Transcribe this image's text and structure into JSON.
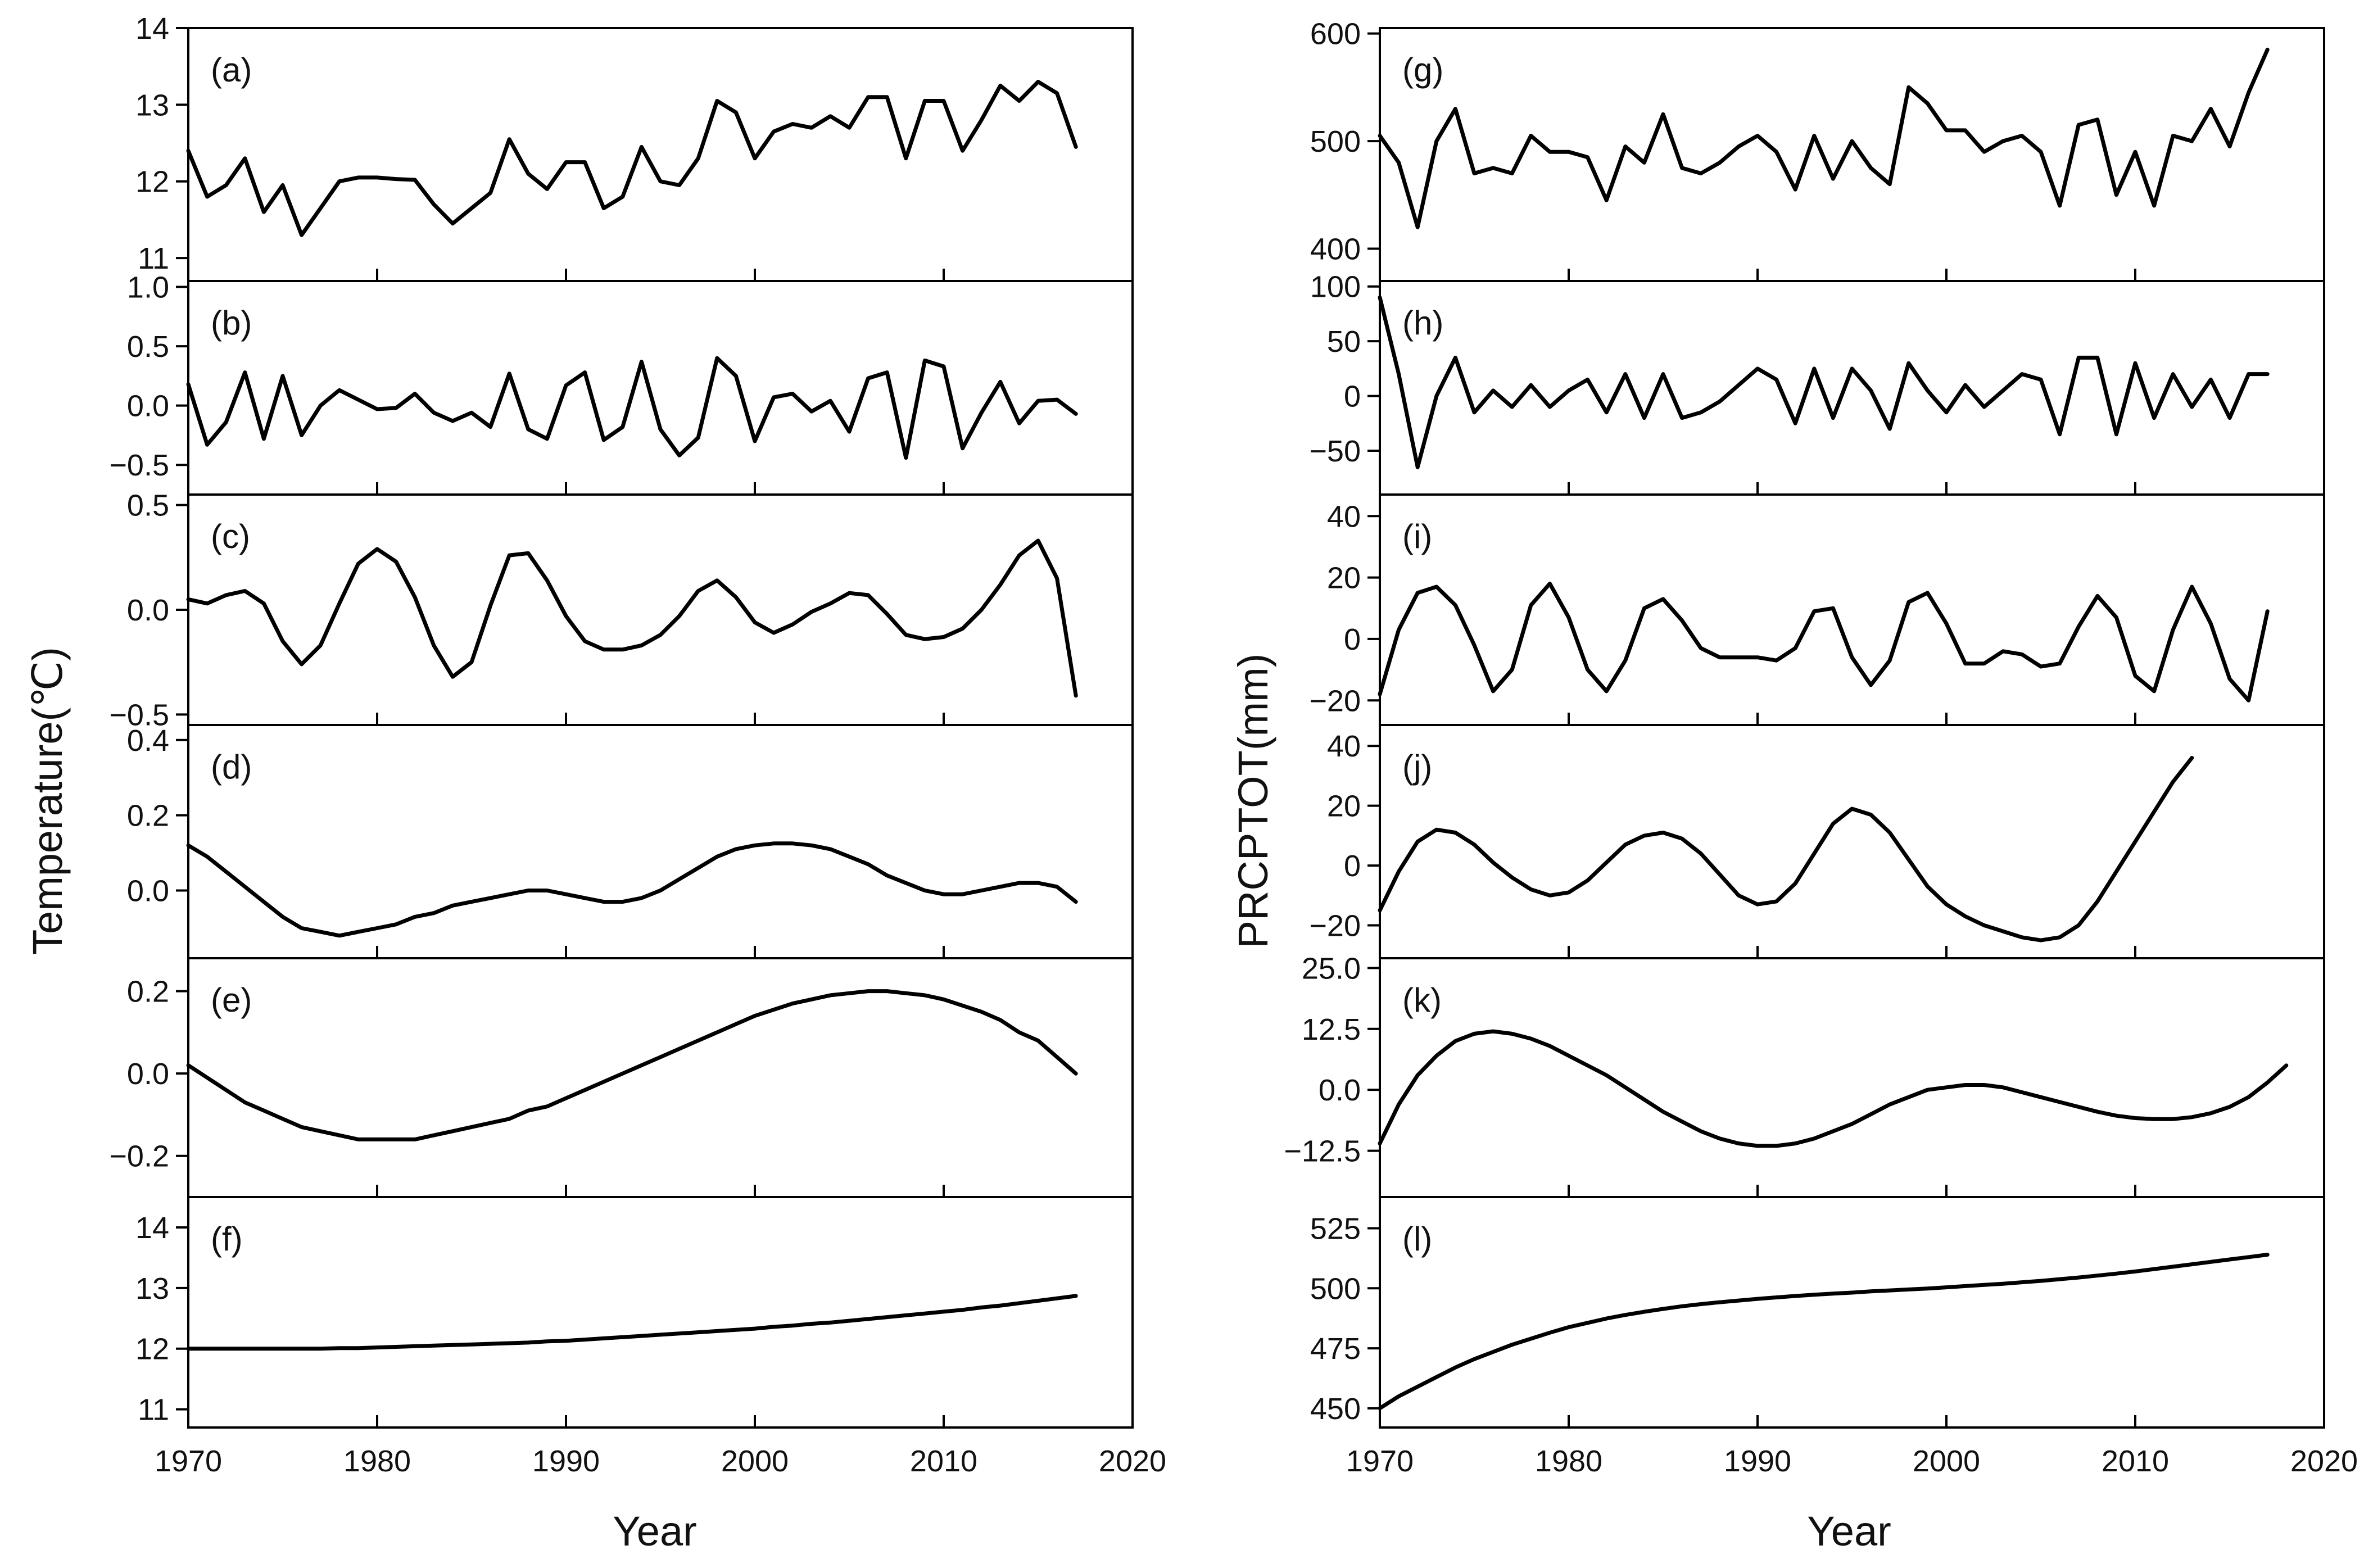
{
  "chart_data": [
    {
      "type": "line",
      "id": "a",
      "tag": "(a)",
      "column": "left",
      "xlim": [
        1970,
        2020
      ],
      "ylim": [
        10.7,
        14
      ],
      "yticks": [
        11,
        12,
        13,
        14
      ],
      "ytick_labels": [
        "11",
        "12",
        "13",
        "14"
      ],
      "series": [
        {
          "name": "a",
          "x_start": 1970,
          "x_step": 1,
          "values": [
            12.4,
            11.8,
            11.95,
            12.3,
            11.6,
            11.95,
            11.3,
            11.65,
            12.0,
            12.05,
            12.05,
            12.03,
            12.02,
            11.7,
            11.45,
            11.65,
            11.85,
            12.55,
            12.1,
            11.9,
            12.25,
            12.25,
            11.65,
            11.8,
            12.45,
            12.0,
            11.95,
            12.3,
            13.05,
            12.9,
            12.3,
            12.65,
            12.75,
            12.7,
            12.85,
            12.7,
            13.1,
            13.1,
            12.3,
            13.05,
            13.05,
            12.4,
            12.8,
            13.25,
            13.05,
            13.3,
            13.15,
            12.45
          ]
        }
      ]
    },
    {
      "type": "line",
      "id": "b",
      "tag": "(b)",
      "column": "left",
      "xlim": [
        1970,
        2020
      ],
      "ylim": [
        -0.75,
        1.05
      ],
      "yticks": [
        -0.5,
        0,
        0.5,
        1.0
      ],
      "ytick_labels": [
        "−0.5",
        "0.0",
        "0.5",
        "1.0"
      ],
      "series": [
        {
          "name": "b",
          "x_start": 1970,
          "x_step": 1,
          "values": [
            0.18,
            -0.33,
            -0.14,
            0.28,
            -0.28,
            0.25,
            -0.25,
            0.0,
            0.13,
            0.05,
            -0.03,
            -0.02,
            0.1,
            -0.06,
            -0.13,
            -0.06,
            -0.18,
            0.27,
            -0.2,
            -0.28,
            0.17,
            0.28,
            -0.29,
            -0.18,
            0.37,
            -0.2,
            -0.42,
            -0.27,
            0.4,
            0.25,
            -0.3,
            0.07,
            0.1,
            -0.05,
            0.04,
            -0.22,
            0.23,
            0.28,
            -0.44,
            0.38,
            0.33,
            -0.36,
            -0.06,
            0.2,
            -0.15,
            0.04,
            0.05,
            -0.07
          ]
        }
      ]
    },
    {
      "type": "line",
      "id": "c",
      "tag": "(c)",
      "column": "left",
      "xlim": [
        1970,
        2020
      ],
      "ylim": [
        -0.55,
        0.55
      ],
      "yticks": [
        -0.5,
        0,
        0.5
      ],
      "ytick_labels": [
        "−0.5",
        "0.0",
        "0.5"
      ],
      "series": [
        {
          "name": "c",
          "x_start": 1970,
          "x_step": 1,
          "values": [
            0.05,
            0.03,
            0.07,
            0.09,
            0.03,
            -0.15,
            -0.26,
            -0.17,
            0.03,
            0.22,
            0.29,
            0.23,
            0.06,
            -0.17,
            -0.32,
            -0.25,
            0.02,
            0.26,
            0.27,
            0.14,
            -0.03,
            -0.15,
            -0.19,
            -0.19,
            -0.17,
            -0.12,
            -0.03,
            0.09,
            0.14,
            0.06,
            -0.06,
            -0.11,
            -0.07,
            -0.01,
            0.03,
            0.08,
            0.07,
            -0.02,
            -0.12,
            -0.14,
            -0.13,
            -0.09,
            0.0,
            0.12,
            0.26,
            0.33,
            0.15,
            -0.41
          ]
        }
      ]
    },
    {
      "type": "line",
      "id": "d",
      "tag": "(d)",
      "column": "left",
      "xlim": [
        1970,
        2020
      ],
      "ylim": [
        -0.18,
        0.44
      ],
      "yticks": [
        0,
        0.2,
        0.4
      ],
      "ytick_labels": [
        "0.0",
        "0.2",
        "0.4"
      ],
      "series": [
        {
          "name": "d",
          "x_start": 1970,
          "x_step": 1,
          "values": [
            0.12,
            0.09,
            0.05,
            0.01,
            -0.03,
            -0.07,
            -0.1,
            -0.11,
            -0.12,
            -0.11,
            -0.1,
            -0.09,
            -0.07,
            -0.06,
            -0.04,
            -0.03,
            -0.02,
            -0.01,
            0.0,
            0.0,
            -0.01,
            -0.02,
            -0.03,
            -0.03,
            -0.02,
            0.0,
            0.03,
            0.06,
            0.09,
            0.11,
            0.12,
            0.125,
            0.125,
            0.12,
            0.11,
            0.09,
            0.07,
            0.04,
            0.02,
            0.0,
            -0.01,
            -0.01,
            0.0,
            0.01,
            0.02,
            0.02,
            0.01,
            -0.03
          ]
        }
      ]
    },
    {
      "type": "line",
      "id": "e",
      "tag": "(e)",
      "column": "left",
      "xlim": [
        1970,
        2020
      ],
      "ylim": [
        -0.3,
        0.28
      ],
      "yticks": [
        -0.2,
        0,
        0.2
      ],
      "ytick_labels": [
        "−0.2",
        "0.0",
        "0.2"
      ],
      "series": [
        {
          "name": "e",
          "x_start": 1970,
          "x_step": 1,
          "values": [
            0.02,
            -0.01,
            -0.04,
            -0.07,
            -0.09,
            -0.11,
            -0.13,
            -0.14,
            -0.15,
            -0.16,
            -0.16,
            -0.16,
            -0.16,
            -0.15,
            -0.14,
            -0.13,
            -0.12,
            -0.11,
            -0.09,
            -0.08,
            -0.06,
            -0.04,
            -0.02,
            0.0,
            0.02,
            0.04,
            0.06,
            0.08,
            0.1,
            0.12,
            0.14,
            0.155,
            0.17,
            0.18,
            0.19,
            0.195,
            0.2,
            0.2,
            0.195,
            0.19,
            0.18,
            0.165,
            0.15,
            0.13,
            0.1,
            0.08,
            0.04,
            0.0
          ]
        }
      ]
    },
    {
      "type": "line",
      "id": "f",
      "tag": "(f)",
      "column": "left",
      "xlim": [
        1970,
        2020
      ],
      "ylim": [
        10.7,
        14.5
      ],
      "yticks": [
        11,
        12,
        13,
        14
      ],
      "ytick_labels": [
        "11",
        "12",
        "13",
        "14"
      ],
      "series": [
        {
          "name": "f",
          "x_start": 1970,
          "x_step": 1,
          "values": [
            12.0,
            12.0,
            12.0,
            12.0,
            12.0,
            12.0,
            12.0,
            12.0,
            12.01,
            12.01,
            12.02,
            12.03,
            12.04,
            12.05,
            12.06,
            12.07,
            12.08,
            12.09,
            12.1,
            12.12,
            12.13,
            12.15,
            12.17,
            12.19,
            12.21,
            12.23,
            12.25,
            12.27,
            12.29,
            12.31,
            12.33,
            12.36,
            12.38,
            12.41,
            12.43,
            12.46,
            12.49,
            12.52,
            12.55,
            12.58,
            12.61,
            12.64,
            12.68,
            12.71,
            12.75,
            12.79,
            12.83,
            12.87
          ]
        }
      ]
    },
    {
      "type": "line",
      "id": "g",
      "tag": "(g)",
      "column": "right",
      "xlim": [
        1970,
        2020
      ],
      "ylim": [
        370,
        605
      ],
      "yticks": [
        400,
        500,
        600
      ],
      "ytick_labels": [
        "400",
        "500",
        "600"
      ],
      "series": [
        {
          "name": "g",
          "x_start": 1970,
          "x_step": 1,
          "values": [
            505,
            480,
            420,
            500,
            530,
            470,
            475,
            470,
            505,
            490,
            490,
            485,
            445,
            495,
            480,
            525,
            475,
            470,
            480,
            495,
            505,
            490,
            455,
            505,
            465,
            500,
            475,
            460,
            550,
            535,
            510,
            510,
            490,
            500,
            505,
            490,
            440,
            515,
            520,
            450,
            490,
            440,
            505,
            500,
            530,
            495,
            545,
            585
          ]
        }
      ]
    },
    {
      "type": "line",
      "id": "h",
      "tag": "(h)",
      "column": "right",
      "xlim": [
        1970,
        2020
      ],
      "ylim": [
        -90,
        105
      ],
      "yticks": [
        -50,
        0,
        50,
        100
      ],
      "ytick_labels": [
        "−50",
        "0",
        "50",
        "100"
      ],
      "series": [
        {
          "name": "h",
          "x_start": 1970,
          "x_step": 1,
          "values": [
            90,
            20,
            -65,
            0,
            35,
            -15,
            5,
            -10,
            10,
            -10,
            5,
            15,
            -15,
            20,
            -20,
            20,
            -20,
            -15,
            -5,
            10,
            25,
            15,
            -25,
            25,
            -20,
            25,
            5,
            -30,
            30,
            5,
            -15,
            10,
            -10,
            5,
            20,
            15,
            -35,
            35,
            35,
            -35,
            30,
            -20,
            20,
            -10,
            15,
            -20,
            20,
            20
          ]
        }
      ]
    },
    {
      "type": "line",
      "id": "i",
      "tag": "(i)",
      "column": "right",
      "xlim": [
        1970,
        2020
      ],
      "ylim": [
        -28,
        47
      ],
      "yticks": [
        -20,
        0,
        20,
        40
      ],
      "ytick_labels": [
        "−20",
        "0",
        "20",
        "40"
      ],
      "series": [
        {
          "name": "i",
          "x_start": 1970,
          "x_step": 1,
          "values": [
            -18,
            3,
            15,
            17,
            11,
            -2,
            -17,
            -10,
            11,
            18,
            7,
            -10,
            -17,
            -7,
            10,
            13,
            6,
            -3,
            -6,
            -6,
            -6,
            -7,
            -3,
            9,
            10,
            -6,
            -15,
            -7,
            12,
            15,
            5,
            -8,
            -8,
            -4,
            -5,
            -9,
            -8,
            4,
            14,
            7,
            -12,
            -17,
            3,
            17,
            5,
            -13,
            -20,
            9
          ]
        }
      ]
    },
    {
      "type": "line",
      "id": "j",
      "tag": "(j)",
      "column": "right",
      "xlim": [
        1970,
        2020
      ],
      "ylim": [
        -31,
        47
      ],
      "yticks": [
        -20,
        0,
        20,
        40
      ],
      "ytick_labels": [
        "−20",
        "0",
        "20",
        "40"
      ],
      "series": [
        {
          "name": "j",
          "x_start": 1970,
          "x_step": 1,
          "values": [
            -15,
            -2,
            8,
            12,
            11,
            7,
            1,
            -4,
            -8,
            -10,
            -9,
            -5,
            1,
            7,
            10,
            11,
            9,
            4,
            -3,
            -10,
            -13,
            -12,
            -6,
            4,
            14,
            19,
            17,
            11,
            2,
            -7,
            -13,
            -17,
            -20,
            -22,
            -24,
            -25,
            -24,
            -20,
            -12,
            -2,
            8,
            18,
            28,
            36
          ]
        }
      ]
    },
    {
      "type": "line",
      "id": "k",
      "tag": "(k)",
      "column": "right",
      "xlim": [
        1970,
        2020
      ],
      "ylim": [
        -22,
        27
      ],
      "yticks": [
        -12.5,
        0,
        12.5,
        25.0
      ],
      "ytick_labels": [
        "−12.5",
        "0.0",
        "12.5",
        "25.0"
      ],
      "series": [
        {
          "name": "k",
          "x_start": 1970,
          "x_step": 1,
          "values": [
            -11,
            -3,
            3,
            7,
            10,
            11.5,
            12,
            11.5,
            10.5,
            9,
            7,
            5,
            3,
            0.5,
            -2,
            -4.5,
            -6.5,
            -8.5,
            -10,
            -11,
            -11.5,
            -11.5,
            -11,
            -10,
            -8.5,
            -7,
            -5,
            -3,
            -1.5,
            0,
            0.5,
            1,
            1,
            0.5,
            -0.5,
            -1.5,
            -2.5,
            -3.5,
            -4.5,
            -5.3,
            -5.8,
            -6,
            -6,
            -5.6,
            -4.8,
            -3.5,
            -1.5,
            1.5,
            5
          ]
        }
      ]
    },
    {
      "type": "line",
      "id": "l",
      "tag": "(l)",
      "column": "right",
      "xlim": [
        1970,
        2020
      ],
      "ylim": [
        442,
        538
      ],
      "yticks": [
        450,
        475,
        500,
        525
      ],
      "ytick_labels": [
        "450",
        "475",
        "500",
        "525"
      ],
      "series": [
        {
          "name": "l",
          "x_start": 1970,
          "x_step": 1,
          "values": [
            450,
            455,
            459,
            463,
            467,
            470.5,
            473.5,
            476.5,
            479,
            481.5,
            483.8,
            485.6,
            487.4,
            488.9,
            490.2,
            491.4,
            492.5,
            493.4,
            494.2,
            494.9,
            495.6,
            496.2,
            496.8,
            497.3,
            497.8,
            498.2,
            498.7,
            499.1,
            499.5,
            499.9,
            500.4,
            500.9,
            501.4,
            501.9,
            502.5,
            503.1,
            503.8,
            504.5,
            505.3,
            506.1,
            507,
            508,
            509,
            510,
            511,
            512,
            513,
            514
          ]
        }
      ]
    }
  ],
  "x_axis": {
    "ticks": [
      1970,
      1980,
      1990,
      2000,
      2010,
      2020
    ],
    "tick_labels": [
      "1970",
      "1980",
      "1990",
      "2000",
      "2010",
      "2020"
    ],
    "left_title": "Year",
    "right_title": "Year"
  },
  "y_axis": {
    "left_title": "Temperature(℃)",
    "right_title": "PRCPTOT(mm)"
  }
}
